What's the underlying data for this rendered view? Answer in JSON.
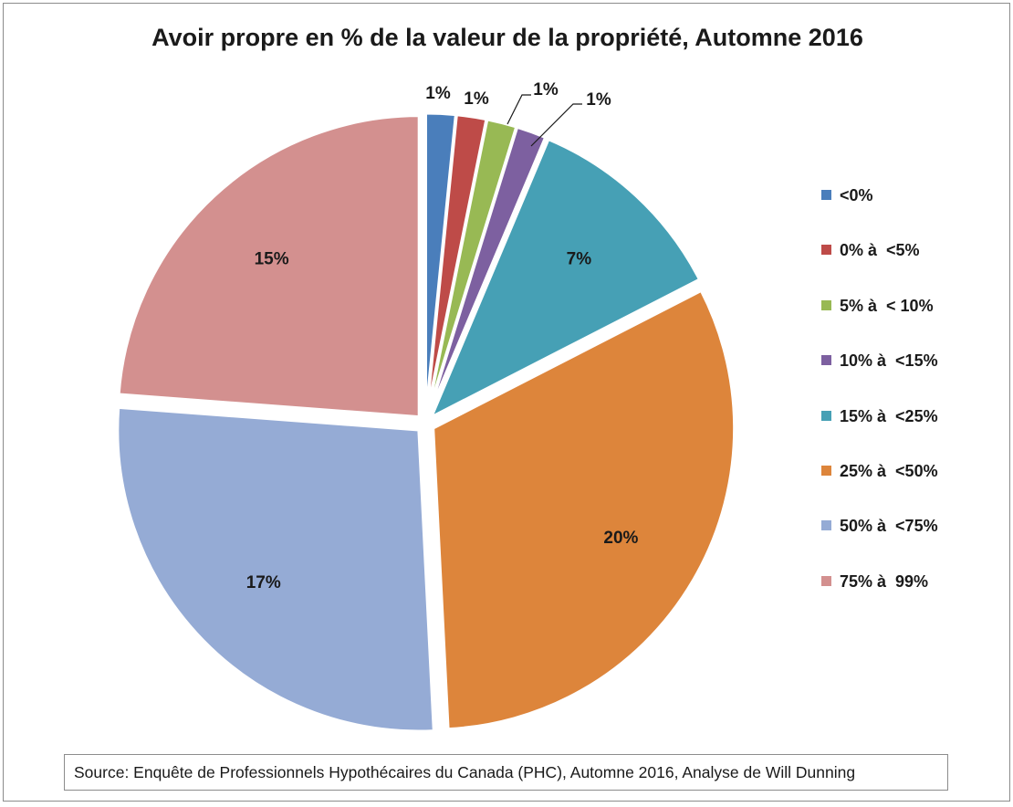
{
  "chart_data": {
    "type": "pie",
    "title": "Avoir propre en % de la valeur de la propriété, Automne 2016",
    "categories": [
      "<0%",
      "0% à  <5%",
      "5% à  < 10%",
      "10% à  <15%",
      "15% à  <25%",
      "25% à  <50%",
      "50% à  <75%",
      "75% à  99%"
    ],
    "values": [
      1,
      1,
      1,
      1,
      7,
      20,
      17,
      15
    ],
    "data_labels": [
      "1%",
      "1%",
      "1%",
      "1%",
      "7%",
      "20%",
      "17%",
      "15%"
    ],
    "colors": [
      "#4a7ebb",
      "#be4b48",
      "#98b954",
      "#7d60a0",
      "#46a0b5",
      "#dd853b",
      "#95abd5",
      "#d3908f"
    ],
    "legend_position": "right",
    "start_angle_deg": 0,
    "direction": "clockwise",
    "exploded": true
  },
  "source": "Source: Enquête de Professionnels Hypothécaires du Canada (PHC), Automne 2016, Analyse de Will Dunning"
}
